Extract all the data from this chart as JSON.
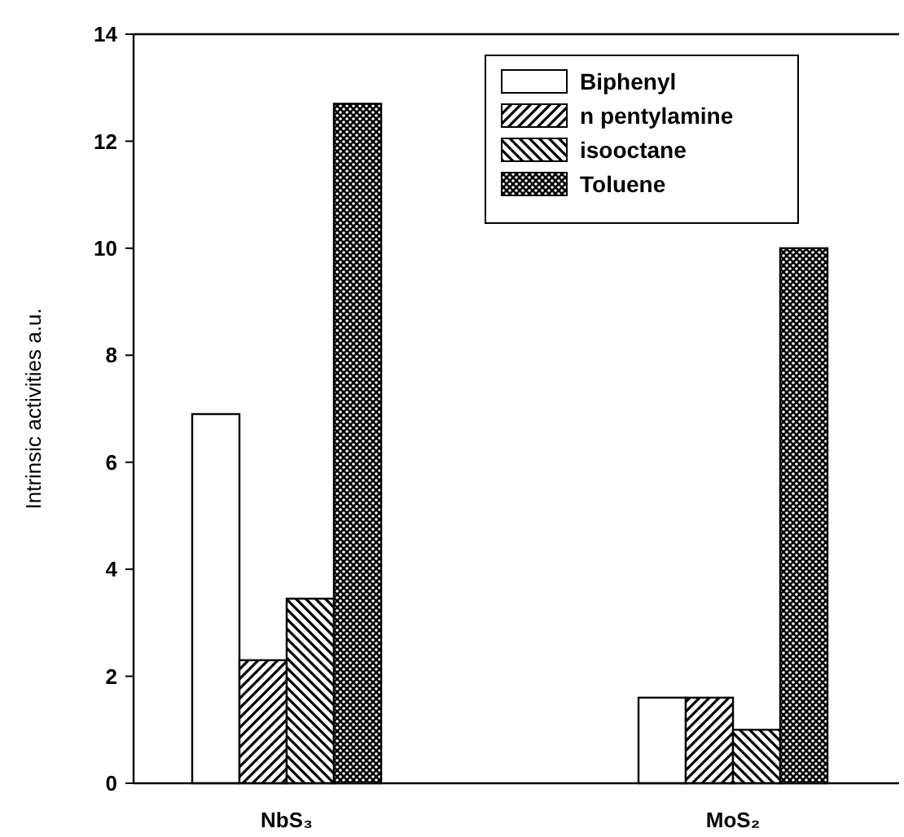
{
  "chart_data": {
    "type": "bar",
    "ylabel": "Intrinsic activities a.u.",
    "categories": [
      "NbS₃",
      "MoS₂"
    ],
    "series": [
      {
        "name": "Biphenyl",
        "color": "#ffffff",
        "values": [
          6.9,
          1.6
        ]
      },
      {
        "name": "n pentylamine",
        "color": "#000000",
        "values": [
          2.3,
          1.6
        ]
      },
      {
        "name": "isooctane",
        "color": "#000000",
        "values": [
          3.45,
          1.0
        ]
      },
      {
        "name": "Toluene",
        "color": "#000000",
        "values": [
          12.7,
          10.0
        ]
      }
    ],
    "ylim": [
      0,
      14
    ],
    "yticks": [
      0,
      2,
      4,
      6,
      8,
      10,
      12,
      14
    ],
    "grid": false,
    "legend": "top right"
  }
}
